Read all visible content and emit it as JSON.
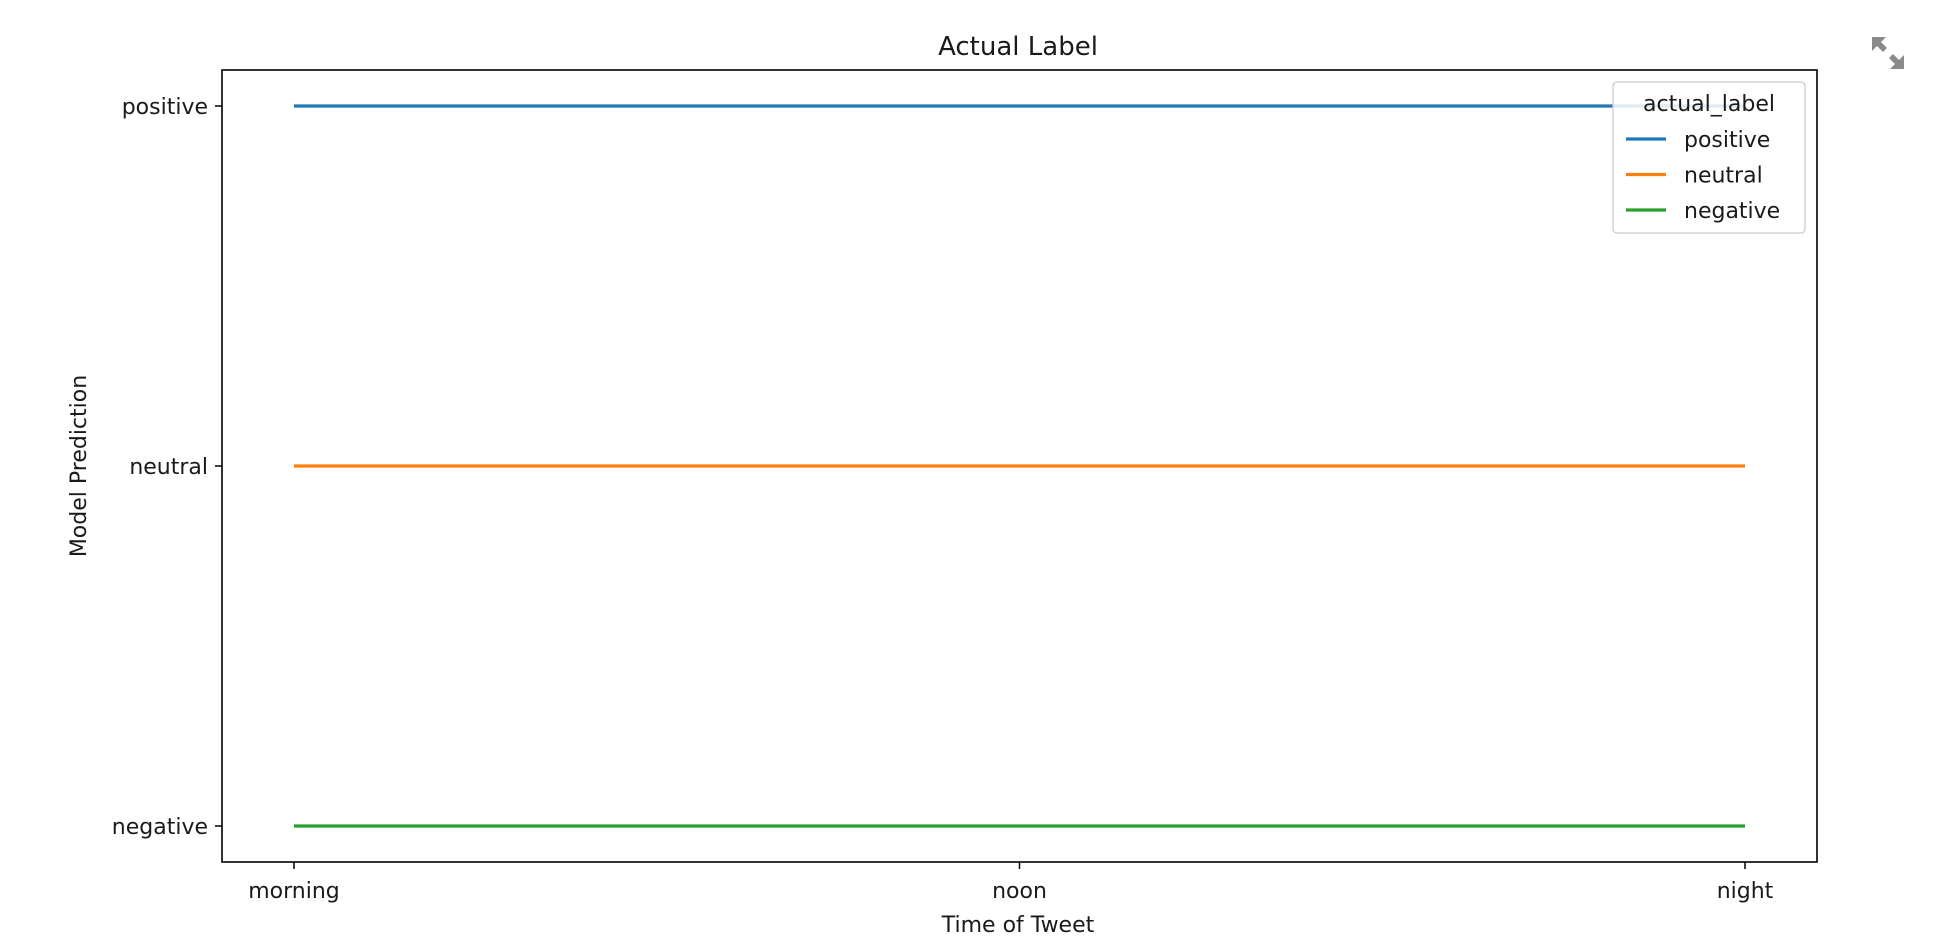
{
  "chart_data": {
    "type": "line",
    "title": "Actual Label",
    "xlabel": "Time of Tweet",
    "ylabel": "Model Prediction",
    "categories": [
      "morning",
      "noon",
      "night"
    ],
    "y_categories": [
      "negative",
      "neutral",
      "positive"
    ],
    "series": [
      {
        "name": "positive",
        "color": "#1f77b4",
        "values": [
          "positive",
          "positive",
          "positive"
        ]
      },
      {
        "name": "neutral",
        "color": "#ff7f0e",
        "values": [
          "neutral",
          "neutral",
          "neutral"
        ]
      },
      {
        "name": "negative",
        "color": "#2ca02c",
        "values": [
          "negative",
          "negative",
          "negative"
        ]
      }
    ],
    "legend": {
      "title": "actual_label",
      "placement": "upper-right"
    },
    "grid": false
  },
  "controls": {
    "expand_icon": "expand-icon"
  }
}
